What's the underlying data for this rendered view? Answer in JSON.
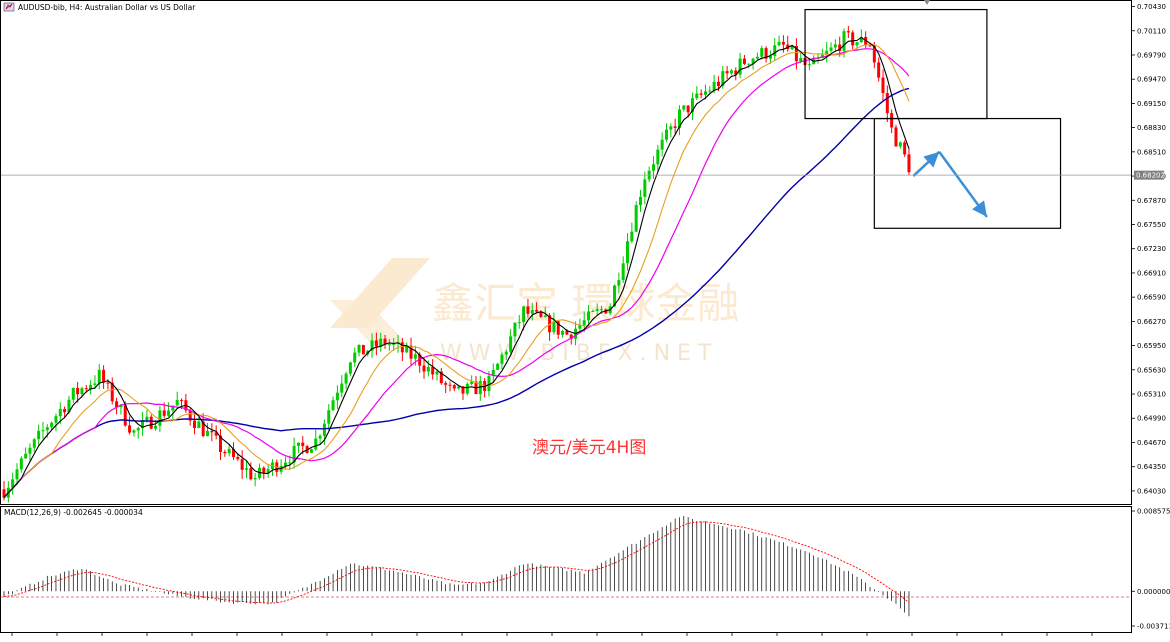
{
  "header": {
    "title": "AUDUSD-bib, H4: Australian Dollar vs US Dollar",
    "icon": "chart-flag-icon"
  },
  "annotation": "澳元/美元4H图",
  "watermark": {
    "text": "鑫汇宝 環球金融",
    "url": "W W W . B I B F X . N E T",
    "logo": "bibfx-logo-icon"
  },
  "price_axis": {
    "ticks": [
      "0.70430",
      "0.70110",
      "0.69790",
      "0.69470",
      "0.69150",
      "0.68830",
      "0.68510",
      "0.68190",
      "0.67870",
      "0.67550",
      "0.67230",
      "0.66910",
      "0.66590",
      "0.66270",
      "0.65950",
      "0.65630",
      "0.65310",
      "0.64990",
      "0.64670",
      "0.64350",
      "0.64030"
    ],
    "current_price": "0.68202"
  },
  "macd_panel": {
    "label": "MACD(12,26,9) -0.002645 -0.000034",
    "ticks": [
      "0.008575",
      "0.000000",
      "-0.003711"
    ]
  },
  "colors": {
    "bull": "#00cc00",
    "bear": "#ff0000",
    "ma_fast": "#000000",
    "ma_orange": "#e6a020",
    "ma_magenta": "#ee00ee",
    "ma_slow": "#0000aa",
    "arrow": "#3a8fd8",
    "annotation": "#ff3333",
    "macd_signal": "#ff0000"
  },
  "chart_data": [
    {
      "type": "candlestick",
      "symbol": "AUDUSD-bib",
      "timeframe": "H4",
      "ylim": [
        0.6387,
        0.7049
      ],
      "series": [
        {
          "name": "candles",
          "count": 210,
          "start": 0.6405,
          "end": 0.682,
          "path": [
            [
              0,
              0.6405
            ],
            [
              10,
              0.649
            ],
            [
              16,
              0.653
            ],
            [
              22,
              0.6555
            ],
            [
              30,
              0.648
            ],
            [
              40,
              0.652
            ],
            [
              50,
              0.646
            ],
            [
              58,
              0.642
            ],
            [
              66,
              0.645
            ],
            [
              72,
              0.647
            ],
            [
              80,
              0.658
            ],
            [
              88,
              0.66
            ],
            [
              96,
              0.6575
            ],
            [
              104,
              0.653
            ],
            [
              112,
              0.6545
            ],
            [
              120,
              0.664
            ],
            [
              130,
              0.661
            ],
            [
              140,
              0.665
            ],
            [
              148,
              0.682
            ],
            [
              156,
              0.69
            ],
            [
              162,
              0.693
            ],
            [
              172,
              0.6975
            ],
            [
              180,
              0.699
            ],
            [
              186,
              0.696
            ],
            [
              194,
              0.7
            ],
            [
              200,
              0.6995
            ],
            [
              205,
              0.688
            ],
            [
              210,
              0.682
            ]
          ]
        },
        {
          "name": "fast-ma",
          "smoothing": 5
        },
        {
          "name": "orange-ma",
          "smoothing": 12
        },
        {
          "name": "magenta-ma",
          "smoothing": 22
        },
        {
          "name": "slow-ma",
          "smoothing": 65
        }
      ],
      "boxes": [
        {
          "from_index": 185,
          "to_index": 227,
          "top": 0.7039,
          "bottom": 0.6895
        },
        {
          "from_index": 201,
          "to_index": 244,
          "top": 0.6895,
          "bottom": 0.675
        }
      ],
      "arrow_path": [
        [
          210,
          0.6819
        ],
        [
          216,
          0.6851
        ],
        [
          227,
          0.6765
        ]
      ],
      "grid": false
    },
    {
      "type": "bar",
      "name": "MACD",
      "params": [
        12,
        26,
        9
      ],
      "main": -0.002645,
      "signal": -3.4e-05,
      "ylim": [
        -0.003711,
        0.008575
      ],
      "profile": [
        [
          0,
          -0.0006
        ],
        [
          10,
          0.0015
        ],
        [
          18,
          0.0025
        ],
        [
          26,
          0.0008
        ],
        [
          40,
          -0.0005
        ],
        [
          52,
          -0.0012
        ],
        [
          62,
          -0.0013
        ],
        [
          70,
          0.0005
        ],
        [
          80,
          0.003
        ],
        [
          90,
          0.0022
        ],
        [
          104,
          0.0006
        ],
        [
          112,
          0.001
        ],
        [
          120,
          0.003
        ],
        [
          134,
          0.002
        ],
        [
          146,
          0.0052
        ],
        [
          156,
          0.008
        ],
        [
          170,
          0.0066
        ],
        [
          186,
          0.0042
        ],
        [
          196,
          0.0018
        ],
        [
          205,
          -0.001
        ],
        [
          210,
          -0.0032
        ]
      ]
    }
  ]
}
